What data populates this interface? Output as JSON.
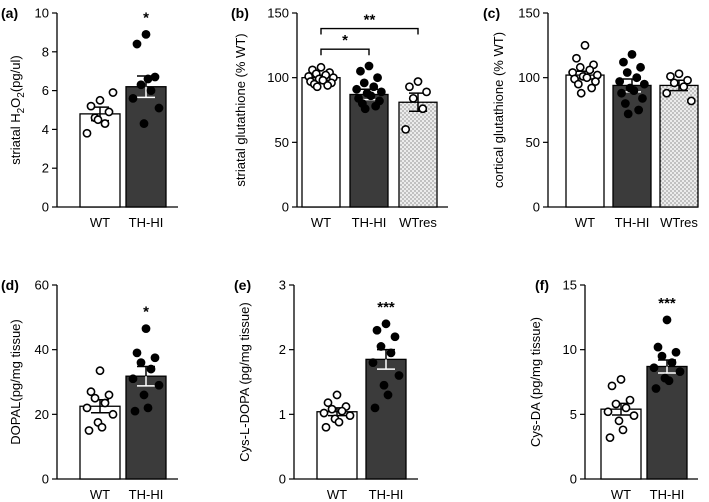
{
  "figure": {
    "width": 709,
    "height": 502
  },
  "chart_data": [
    {
      "panel": "(a)",
      "type": "bar",
      "ylabel": "striatal H2O2(pg/ul)",
      "ylim": [
        0,
        10
      ],
      "yticks": [
        0,
        2,
        4,
        6,
        8,
        10
      ],
      "categories": [
        "WT",
        "TH-HI"
      ],
      "means": [
        4.8,
        6.2
      ],
      "sem": [
        0.35,
        0.55
      ],
      "fills": [
        "white",
        "dark"
      ],
      "points": [
        [
          5.5,
          5.2,
          4.9,
          4.6,
          4.3,
          3.8,
          5.9,
          4.5
        ],
        [
          8.9,
          8.4,
          6.7,
          6.3,
          6.0,
          5.6,
          5.1,
          4.3,
          6.6
        ]
      ],
      "significance": [
        {
          "pair": [
            1,
            1
          ],
          "label": "*",
          "bracket": false
        }
      ]
    },
    {
      "panel": "(b)",
      "type": "bar",
      "ylabel": "striatal glutathione (% WT)",
      "ylim": [
        0,
        150
      ],
      "yticks": [
        0,
        50,
        100,
        150
      ],
      "categories": [
        "WT",
        "TH-HI",
        "WTres"
      ],
      "means": [
        100,
        87,
        81
      ],
      "sem": [
        2,
        4,
        7
      ],
      "fills": [
        "white",
        "dark",
        "dotted"
      ],
      "points": [
        [
          108,
          106,
          104,
          103,
          102,
          101,
          100,
          99,
          98,
          97,
          96,
          95,
          94,
          93
        ],
        [
          109,
          105,
          100,
          96,
          93,
          91,
          89,
          88,
          86,
          84,
          82,
          80,
          78,
          76
        ],
        [
          97,
          93,
          89,
          84,
          76,
          60
        ]
      ],
      "significance": [
        {
          "pair": [
            0,
            1
          ],
          "label": "*",
          "bracket": true,
          "y": 122
        },
        {
          "pair": [
            0,
            2
          ],
          "label": "**",
          "bracket": true,
          "y": 138
        }
      ]
    },
    {
      "panel": "(c)",
      "type": "bar",
      "ylabel": "cortical glutathione (% WT)",
      "ylim": [
        0,
        150
      ],
      "yticks": [
        0,
        50,
        100,
        150
      ],
      "categories": [
        "WT",
        "TH-HI",
        "WTres"
      ],
      "means": [
        102,
        94,
        94
      ],
      "sem": [
        3,
        5,
        4
      ],
      "fills": [
        "white",
        "dark",
        "dotted"
      ],
      "points": [
        [
          125,
          115,
          110,
          108,
          106,
          104,
          102,
          101,
          100,
          99,
          97,
          95,
          92,
          88
        ],
        [
          118,
          112,
          108,
          104,
          100,
          97,
          95,
          92,
          90,
          88,
          84,
          80,
          75,
          72
        ],
        [
          103,
          101,
          98,
          96,
          93,
          88,
          82
        ]
      ],
      "significance": []
    },
    {
      "panel": "(d)",
      "type": "bar",
      "ylabel": "DOPAL(pg/mg tissue)",
      "ylim": [
        0,
        60
      ],
      "yticks": [
        0,
        20,
        40,
        60
      ],
      "categories": [
        "WT",
        "TH-HI"
      ],
      "means": [
        22.5,
        31.8
      ],
      "sem": [
        2,
        3
      ],
      "fills": [
        "white",
        "dark"
      ],
      "points": [
        [
          33.5,
          27,
          26,
          25,
          23.5,
          22,
          20,
          17.5,
          16,
          15
        ],
        [
          46.5,
          39,
          37.5,
          36,
          34,
          31,
          29,
          26,
          22,
          21
        ]
      ],
      "significance": [
        {
          "pair": [
            1,
            1
          ],
          "label": "*",
          "bracket": false
        }
      ]
    },
    {
      "panel": "(e)",
      "type": "bar",
      "ylabel": "Cys-L-DOPA (pg/mg tissue)",
      "ylim": [
        0,
        3
      ],
      "yticks": [
        0,
        1,
        2,
        3
      ],
      "categories": [
        "WT",
        "TH-HI"
      ],
      "means": [
        1.04,
        1.85
      ],
      "sem": [
        0.06,
        0.15
      ],
      "fills": [
        "white",
        "dark"
      ],
      "points": [
        [
          1.3,
          1.18,
          1.12,
          1.08,
          1.05,
          1.02,
          0.98,
          0.93,
          0.88,
          0.8
        ],
        [
          2.4,
          2.3,
          2.2,
          2.05,
          1.95,
          1.8,
          1.6,
          1.45,
          1.3,
          1.1
        ]
      ],
      "significance": [
        {
          "pair": [
            1,
            1
          ],
          "label": "***",
          "bracket": false
        }
      ]
    },
    {
      "panel": "(f)",
      "type": "bar",
      "ylabel": "Cys-DA (pg/mg tissue)",
      "ylim": [
        0,
        15
      ],
      "yticks": [
        0,
        5,
        10,
        15
      ],
      "categories": [
        "WT",
        "TH-HI"
      ],
      "means": [
        5.4,
        8.7
      ],
      "sem": [
        0.45,
        0.5
      ],
      "fills": [
        "white",
        "dark"
      ],
      "points": [
        [
          7.7,
          7.2,
          6.1,
          5.8,
          5.5,
          5.2,
          4.9,
          4.5,
          3.8,
          3.2
        ],
        [
          12.3,
          10.2,
          9.8,
          9.5,
          9.0,
          8.6,
          8.3,
          7.8,
          7.6,
          7.0
        ]
      ],
      "significance": [
        {
          "pair": [
            1,
            1
          ],
          "label": "***",
          "bracket": false
        }
      ]
    }
  ]
}
